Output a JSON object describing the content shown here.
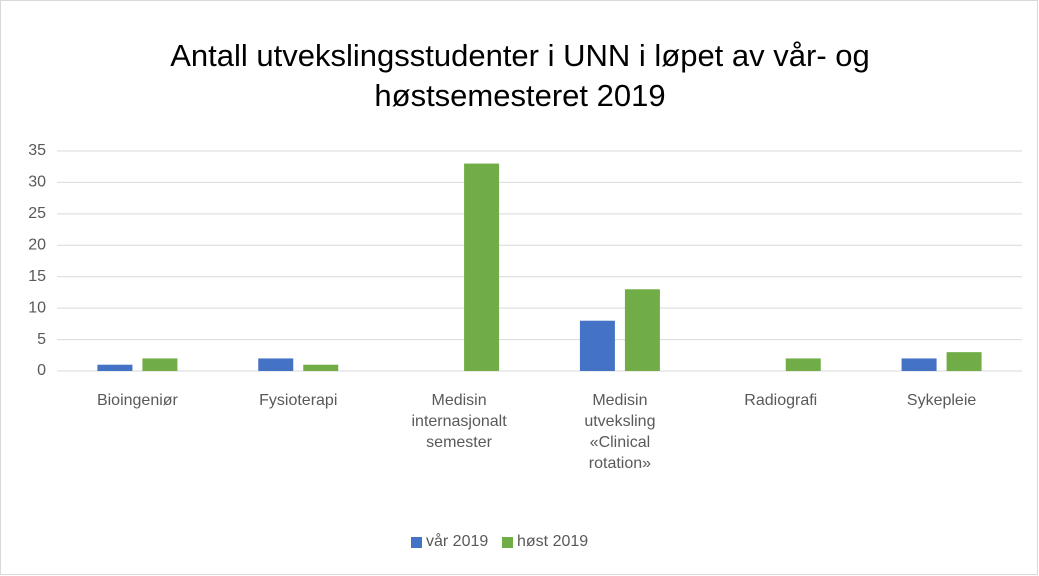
{
  "chart_data": {
    "type": "bar",
    "title": "Antall utvekslingsstudenter i UNN i løpet av vår- og høstsemesteret 2019",
    "categories": [
      "Bioingeniør",
      "Fysioterapi",
      "Medisin internasjonalt semester",
      "Medisin utveksling «Clinical rotation»",
      "Radiografi",
      "Sykepleie"
    ],
    "series": [
      {
        "name": "vår 2019",
        "color": "#4472c4",
        "values": [
          1,
          2,
          0,
          8,
          0,
          2
        ]
      },
      {
        "name": "høst 2019",
        "color": "#70ad47",
        "values": [
          2,
          1,
          33,
          13,
          2,
          3
        ]
      }
    ],
    "ylim": [
      0,
      35
    ],
    "yticks": [
      0,
      5,
      10,
      15,
      20,
      25,
      30,
      35
    ],
    "grid": true,
    "legend": "bottom"
  }
}
